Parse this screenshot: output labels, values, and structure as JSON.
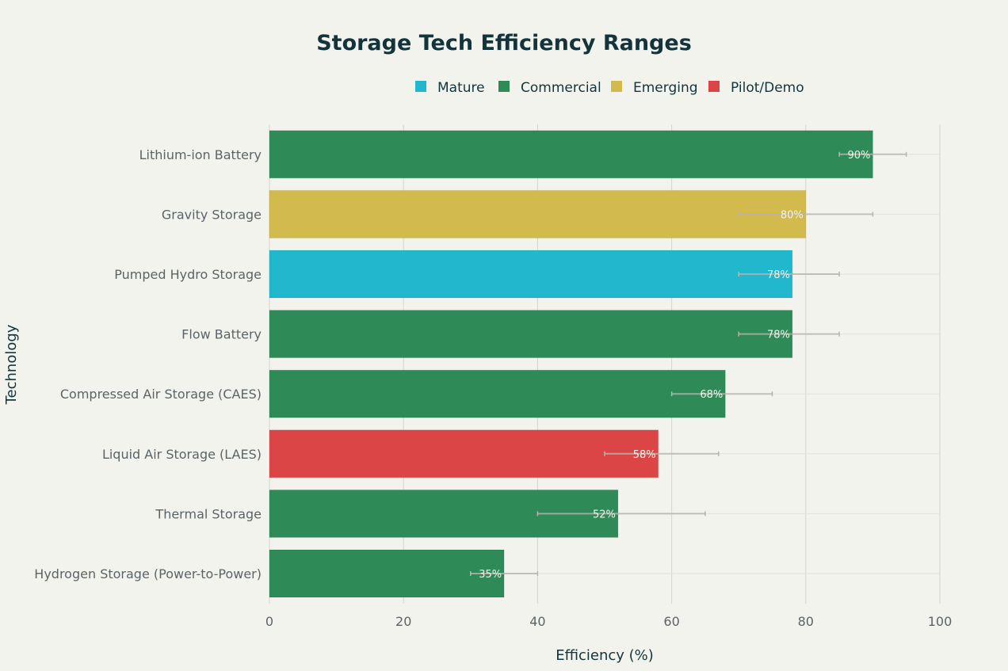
{
  "chart_data": {
    "type": "bar",
    "orientation": "horizontal",
    "title": "Storage Tech Efficiency Ranges",
    "xlabel": "Efficiency (%)",
    "ylabel": "Technology",
    "xlim": [
      0,
      100
    ],
    "xticks": [
      0,
      20,
      40,
      60,
      80,
      100
    ],
    "grid": true,
    "legend_position": "top",
    "legend": [
      {
        "name": "Mature",
        "color": "#21b7cc"
      },
      {
        "name": "Commercial",
        "color": "#2e8b57"
      },
      {
        "name": "Emerging",
        "color": "#d2ba4c"
      },
      {
        "name": "Pilot/Demo",
        "color": "#db4546"
      }
    ],
    "categories": [
      "Lithium-ion Battery",
      "Gravity Storage",
      "Pumped Hydro Storage",
      "Flow Battery",
      "Compressed Air Storage (CAES)",
      "Liquid Air Storage (LAES)",
      "Thermal Storage",
      "Hydrogen Storage (Power-to-Power)"
    ],
    "values": [
      90,
      80,
      78,
      78,
      68,
      58,
      52,
      35
    ],
    "labels": [
      "90%",
      "80%",
      "78%",
      "78%",
      "68%",
      "58%",
      "52%",
      "35%"
    ],
    "maturity": [
      "Commercial",
      "Emerging",
      "Mature",
      "Commercial",
      "Commercial",
      "Pilot/Demo",
      "Commercial",
      "Commercial"
    ],
    "range_low": [
      85,
      70,
      70,
      70,
      60,
      50,
      40,
      30
    ],
    "range_high": [
      95,
      90,
      85,
      85,
      75,
      67,
      65,
      40
    ]
  }
}
